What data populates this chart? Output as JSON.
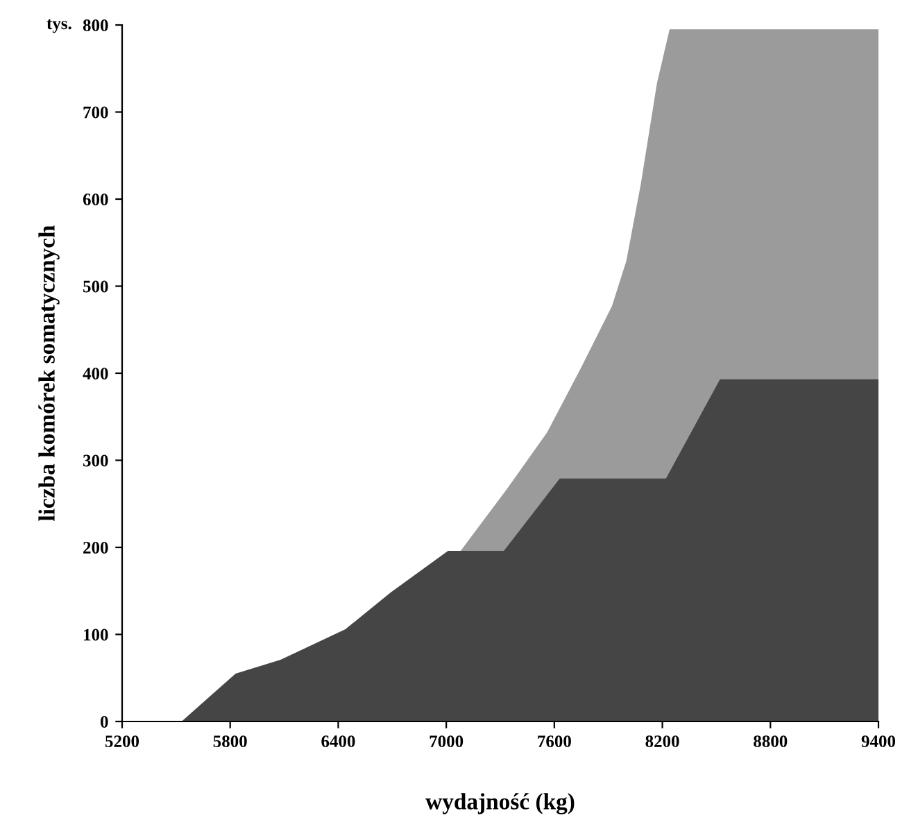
{
  "chart_data": {
    "type": "area",
    "xlabel": "wydajność (kg)",
    "ylabel": "liczba komórek somatycznych",
    "annotations": [
      "tys."
    ],
    "series": [
      {
        "color": "#9b9b9b",
        "x": [
          7080,
          7340,
          7560,
          7750,
          7920,
          8000,
          8080,
          8170,
          8240,
          9400
        ],
        "values": [
          196,
          268,
          332,
          407,
          477,
          529,
          617,
          733,
          795,
          795
        ]
      },
      {
        "color": "#454545",
        "x": [
          5530,
          5830,
          6080,
          6440,
          6690,
          7010,
          7320,
          7630,
          8220,
          8520,
          9400
        ],
        "values": [
          0,
          55,
          71,
          106,
          148,
          196,
          196,
          279,
          279,
          393,
          393
        ]
      }
    ],
    "xlim": [
      5200,
      9400
    ],
    "xticks": [
      5200,
      5800,
      6400,
      7000,
      7600,
      8200,
      8800,
      9400
    ],
    "ylim": [
      0,
      800
    ],
    "yticks": [
      0,
      100,
      200,
      300,
      400,
      500,
      600,
      700,
      800
    ],
    "grid": false,
    "legend": false
  }
}
